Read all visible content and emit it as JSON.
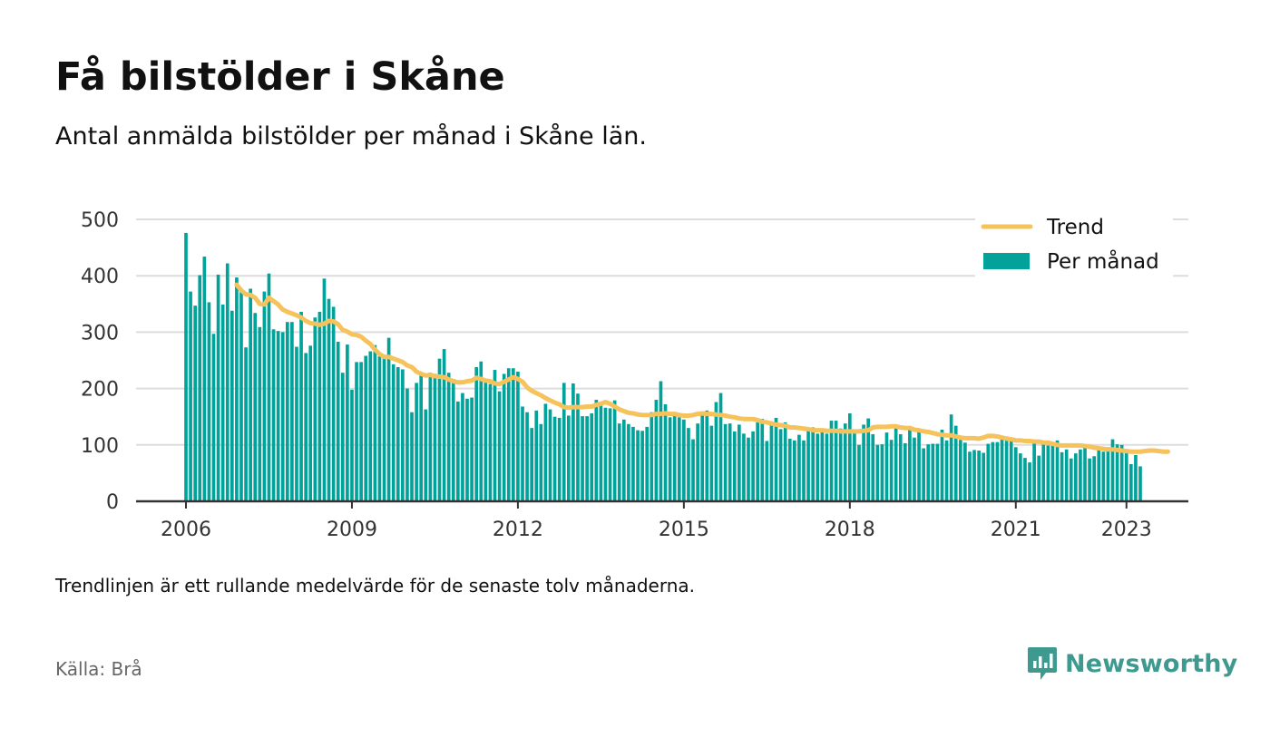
{
  "header": {
    "title": "Få bilstölder i Skåne",
    "subtitle": "Antal anmälda bilstölder per månad i Skåne län."
  },
  "footer": {
    "note": "Trendlinjen är ett rullande medelvärde för de senaste tolv månaderna.",
    "source": "Källa: Brå",
    "brand": "Newsworthy"
  },
  "colors": {
    "bars": "#00a29a",
    "trend": "#f6c25b",
    "grid": "#dddddd",
    "brand": "#3e9a8f"
  },
  "chart_data": {
    "type": "bar",
    "title": "Få bilstölder i Skåne",
    "subtitle": "Antal anmälda bilstölder per månad i Skåne län.",
    "xlabel": "",
    "ylabel": "",
    "ylim": [
      0,
      500
    ],
    "yticks": [
      "0",
      "100",
      "200",
      "300",
      "400",
      "500"
    ],
    "xticks": [
      "2006",
      "2009",
      "2012",
      "2015",
      "2018",
      "2021",
      "2023"
    ],
    "x_start": "2006-01",
    "grid": true,
    "legend_position": "top-right",
    "series": [
      {
        "name": "Per månad",
        "type": "bar",
        "values": [
          476,
          372,
          347,
          401,
          434,
          353,
          297,
          402,
          349,
          422,
          338,
          397,
          374,
          273,
          377,
          334,
          309,
          372,
          404,
          305,
          302,
          300,
          318,
          318,
          274,
          336,
          263,
          276,
          326,
          336,
          395,
          359,
          345,
          283,
          228,
          278,
          198,
          247,
          247,
          258,
          266,
          277,
          257,
          259,
          290,
          243,
          238,
          234,
          200,
          158,
          210,
          225,
          163,
          228,
          226,
          253,
          270,
          228,
          217,
          177,
          192,
          182,
          184,
          238,
          248,
          212,
          208,
          233,
          195,
          226,
          236,
          236,
          230,
          168,
          158,
          130,
          161,
          137,
          173,
          163,
          150,
          148,
          210,
          152,
          209,
          191,
          151,
          151,
          156,
          180,
          171,
          166,
          165,
          179,
          138,
          145,
          137,
          132,
          126,
          125,
          132,
          158,
          180,
          213,
          172,
          149,
          158,
          149,
          145,
          130,
          110,
          138,
          157,
          161,
          134,
          176,
          192,
          137,
          138,
          124,
          136,
          120,
          113,
          124,
          140,
          146,
          107,
          136,
          148,
          128,
          140,
          111,
          108,
          118,
          108,
          128,
          131,
          120,
          125,
          120,
          143,
          143,
          129,
          138,
          156,
          127,
          100,
          136,
          147,
          119,
          100,
          101,
          122,
          109,
          130,
          119,
          103,
          129,
          113,
          126,
          94,
          101,
          102,
          102,
          127,
          108,
          154,
          134,
          109,
          104,
          88,
          91,
          90,
          86,
          102,
          105,
          105,
          112,
          115,
          113,
          96,
          85,
          77,
          69,
          104,
          81,
          104,
          99,
          99,
          108,
          87,
          92,
          76,
          85,
          92,
          95,
          76,
          80,
          91,
          88,
          96,
          110,
          101,
          100,
          88,
          66,
          82,
          62
        ]
      },
      {
        "name": "Trend",
        "type": "line",
        "start_index": 11,
        "values": [
          384,
          374,
          367,
          366,
          361,
          350,
          349,
          361,
          355,
          349,
          340,
          336,
          333,
          330,
          326,
          320,
          316,
          315,
          313,
          315,
          320,
          319,
          314,
          304,
          301,
          296,
          295,
          292,
          285,
          279,
          269,
          261,
          256,
          256,
          253,
          250,
          247,
          241,
          238,
          230,
          226,
          223,
          224,
          222,
          221,
          220,
          216,
          213,
          211,
          211,
          213,
          214,
          219,
          217,
          214,
          213,
          209,
          208,
          212,
          216,
          220,
          217,
          212,
          202,
          196,
          192,
          188,
          183,
          179,
          175,
          172,
          167,
          166,
          167,
          167,
          167,
          168,
          168,
          171,
          173,
          176,
          173,
          168,
          163,
          160,
          157,
          156,
          154,
          153,
          153,
          153,
          155,
          155,
          156,
          155,
          155,
          153,
          152,
          152,
          153,
          155,
          156,
          155,
          155,
          154,
          153,
          152,
          150,
          149,
          147,
          146,
          146,
          146,
          144,
          141,
          140,
          138,
          136,
          135,
          134,
          131,
          131,
          130,
          129,
          128,
          126,
          126,
          126,
          125,
          125,
          125,
          124,
          124,
          124,
          124,
          124,
          125,
          126,
          131,
          132,
          132,
          132,
          133,
          133,
          131,
          130,
          130,
          127,
          126,
          124,
          123,
          121,
          119,
          118,
          117,
          117,
          115,
          113,
          112,
          112,
          112,
          111,
          113,
          116,
          116,
          115,
          113,
          111,
          110,
          108,
          108,
          107,
          107,
          106,
          106,
          104,
          104,
          102,
          100,
          99,
          99,
          99,
          99,
          99,
          98,
          97,
          95,
          94,
          93,
          92,
          92,
          91,
          90,
          89,
          88,
          88,
          88,
          89,
          90,
          90,
          89,
          88,
          88
        ]
      }
    ]
  }
}
